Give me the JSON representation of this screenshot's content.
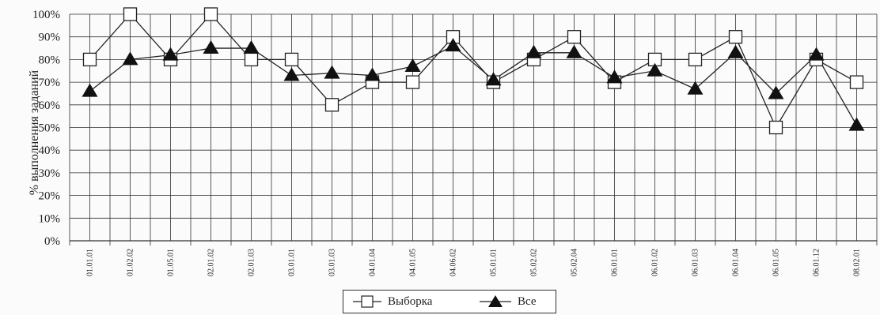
{
  "chart_data": {
    "type": "line",
    "categories": [
      "01.01.01",
      "01.02.02",
      "01.05.01",
      "02.01.02",
      "02.01.03",
      "03.01.01",
      "03.01.03",
      "04.01.04",
      "04.01.05",
      "04.06.02",
      "05.01.01",
      "05.02.02",
      "05.02.04",
      "06.01.01",
      "06.01.02",
      "06.01.03",
      "06.01.04",
      "06.01.05",
      "06.01.12",
      "08.02.01"
    ],
    "series": [
      {
        "name": "Выборка",
        "marker": "square",
        "values": [
          80,
          100,
          80,
          100,
          80,
          80,
          60,
          70,
          70,
          90,
          70,
          80,
          90,
          70,
          80,
          80,
          90,
          50,
          80,
          70
        ]
      },
      {
        "name": "Все",
        "marker": "triangle",
        "values": [
          66,
          80,
          82,
          85,
          85,
          73,
          74,
          73,
          77,
          86,
          71,
          83,
          83,
          72,
          75,
          67,
          83,
          65,
          82,
          51
        ]
      }
    ],
    "ylabel": "% выполнения заданий",
    "ylim": [
      0,
      100
    ],
    "yticks": [
      "0%",
      "10%",
      "20%",
      "30%",
      "40%",
      "50%",
      "60%",
      "70%",
      "80%",
      "90%",
      "100%"
    ],
    "grid": true,
    "legend_position": "bottom"
  },
  "colors": {
    "line": "#222222",
    "grid": "#333333",
    "square_fill": "#ffffff",
    "triangle_fill": "#111111"
  }
}
